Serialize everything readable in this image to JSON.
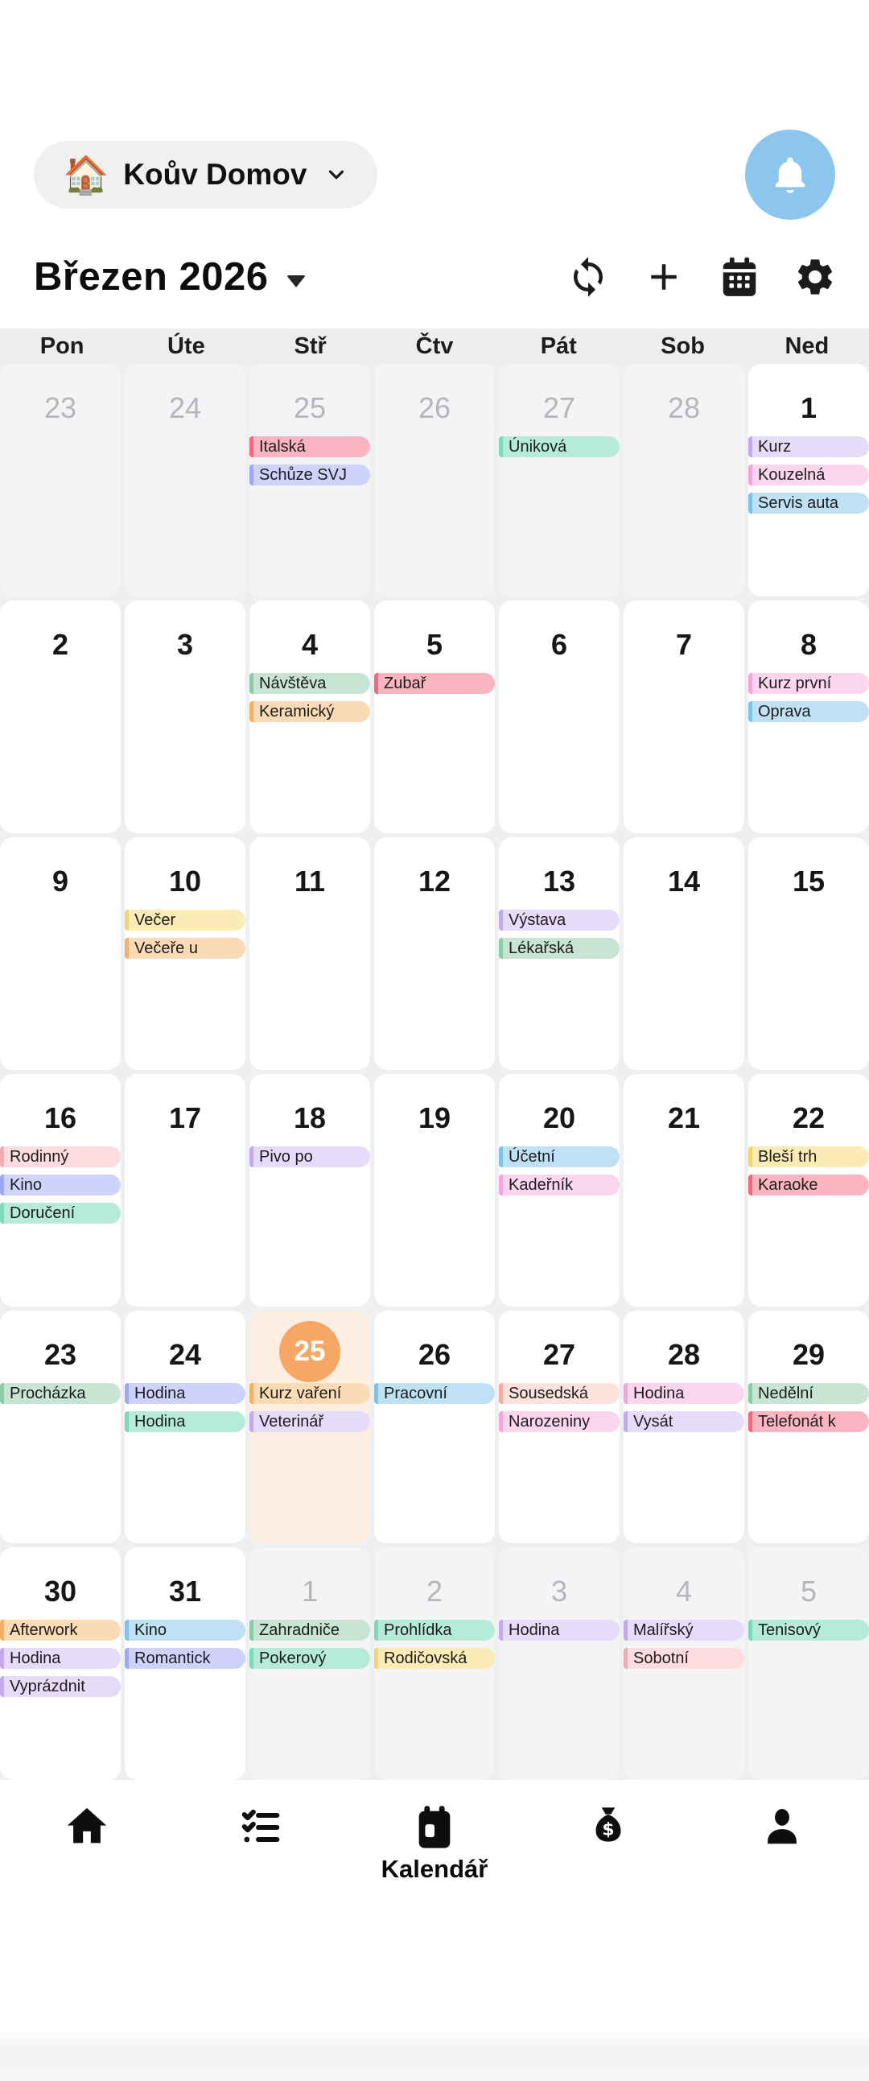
{
  "header": {
    "household_label": "Koův Domov",
    "household_emoji": "🏠"
  },
  "toolbar": {
    "month_title": "Březen 2026",
    "icons": [
      "sync",
      "add",
      "calendar",
      "settings"
    ]
  },
  "weekdays": [
    "Pon",
    "Úte",
    "Stř",
    "Čtv",
    "Pát",
    "Sob",
    "Ned"
  ],
  "colors": {
    "ui": {
      "bell_button": "#8cc5ee",
      "today_circle": "#f6a765",
      "today_cell": "#fcefe1",
      "grid_gap": "#edeff1",
      "outside_cell": "#f4f4f6",
      "weekday_band": "#ededef"
    },
    "events": {
      "salmon": {
        "bg": "#fbb5c1",
        "bar": "#f1697e"
      },
      "rose": {
        "bg": "#fcdcdf",
        "bar": "#f6a9b4"
      },
      "blush": {
        "bg": "#fce3de",
        "bar": "#f3ac9f"
      },
      "periwinkle": {
        "bg": "#cdd3fa",
        "bar": "#9ea8f3"
      },
      "mint": {
        "bg": "#b7ebd9",
        "bar": "#7cdab9"
      },
      "sage": {
        "bg": "#c7e5d2",
        "bar": "#8ccba5"
      },
      "lavender": {
        "bg": "#e6dbf8",
        "bar": "#c3a9ee"
      },
      "pink": {
        "bg": "#fbd6ee",
        "bar": "#f4a5d9"
      },
      "blue": {
        "bg": "#bfe1f4",
        "bar": "#7ec3e8"
      },
      "yellow": {
        "bg": "#fbecb6",
        "bar": "#f3d573"
      },
      "peach": {
        "bg": "#fbdbb5",
        "bar": "#f2b166"
      }
    }
  },
  "calendar": {
    "weeks": [
      [
        {
          "day": 23,
          "outside": true,
          "events": []
        },
        {
          "day": 24,
          "outside": true,
          "events": []
        },
        {
          "day": 25,
          "outside": true,
          "events": [
            {
              "label": "Italská",
              "color": "salmon"
            },
            {
              "label": "Schůze SVJ",
              "color": "periwinkle"
            }
          ]
        },
        {
          "day": 26,
          "outside": true,
          "events": []
        },
        {
          "day": 27,
          "outside": true,
          "events": [
            {
              "label": "Úniková",
              "color": "mint"
            }
          ]
        },
        {
          "day": 28,
          "outside": true,
          "events": []
        },
        {
          "day": 1,
          "outside": false,
          "events": [
            {
              "label": "Kurz",
              "color": "lavender"
            },
            {
              "label": "Kouzelná",
              "color": "pink"
            },
            {
              "label": "Servis auta",
              "color": "blue"
            }
          ]
        }
      ],
      [
        {
          "day": 2,
          "outside": false,
          "events": []
        },
        {
          "day": 3,
          "outside": false,
          "events": []
        },
        {
          "day": 4,
          "outside": false,
          "events": [
            {
              "label": "Návštěva",
              "color": "sage"
            },
            {
              "label": "Keramický",
              "color": "peach"
            }
          ]
        },
        {
          "day": 5,
          "outside": false,
          "events": [
            {
              "label": "Zubař",
              "color": "salmon"
            }
          ]
        },
        {
          "day": 6,
          "outside": false,
          "events": []
        },
        {
          "day": 7,
          "outside": false,
          "events": []
        },
        {
          "day": 8,
          "outside": false,
          "events": [
            {
              "label": "Kurz první",
              "color": "pink"
            },
            {
              "label": "Oprava",
              "color": "blue"
            }
          ]
        }
      ],
      [
        {
          "day": 9,
          "outside": false,
          "events": []
        },
        {
          "day": 10,
          "outside": false,
          "events": [
            {
              "label": "Večer",
              "color": "yellow"
            },
            {
              "label": "Večeře u",
              "color": "peach"
            }
          ]
        },
        {
          "day": 11,
          "outside": false,
          "events": []
        },
        {
          "day": 12,
          "outside": false,
          "events": []
        },
        {
          "day": 13,
          "outside": false,
          "events": [
            {
              "label": "Výstava",
              "color": "lavender"
            },
            {
              "label": "Lékařská",
              "color": "sage"
            }
          ]
        },
        {
          "day": 14,
          "outside": false,
          "events": []
        },
        {
          "day": 15,
          "outside": false,
          "events": []
        }
      ],
      [
        {
          "day": 16,
          "outside": false,
          "events": [
            {
              "label": "Rodinný",
              "color": "rose"
            },
            {
              "label": "Kino",
              "color": "periwinkle"
            },
            {
              "label": "Doručení",
              "color": "mint"
            }
          ]
        },
        {
          "day": 17,
          "outside": false,
          "events": []
        },
        {
          "day": 18,
          "outside": false,
          "events": [
            {
              "label": "Pivo po",
              "color": "lavender"
            }
          ]
        },
        {
          "day": 19,
          "outside": false,
          "events": []
        },
        {
          "day": 20,
          "outside": false,
          "events": [
            {
              "label": "Účetní",
              "color": "blue"
            },
            {
              "label": "Kadeřník",
              "color": "pink"
            }
          ]
        },
        {
          "day": 21,
          "outside": false,
          "events": []
        },
        {
          "day": 22,
          "outside": false,
          "events": [
            {
              "label": "Bleší trh",
              "color": "yellow"
            },
            {
              "label": "Karaoke",
              "color": "salmon"
            }
          ]
        }
      ],
      [
        {
          "day": 23,
          "outside": false,
          "events": [
            {
              "label": "Procházka",
              "color": "sage"
            }
          ]
        },
        {
          "day": 24,
          "outside": false,
          "events": [
            {
              "label": "Hodina",
              "color": "periwinkle"
            },
            {
              "label": "Hodina",
              "color": "mint"
            }
          ]
        },
        {
          "day": 25,
          "outside": false,
          "today": true,
          "events": [
            {
              "label": "Kurz vaření",
              "color": "peach"
            },
            {
              "label": "Veterinář",
              "color": "lavender"
            }
          ]
        },
        {
          "day": 26,
          "outside": false,
          "events": [
            {
              "label": "Pracovní",
              "color": "blue"
            }
          ]
        },
        {
          "day": 27,
          "outside": false,
          "events": [
            {
              "label": "Sousedská",
              "color": "blush"
            },
            {
              "label": "Narozeniny",
              "color": "pink"
            }
          ]
        },
        {
          "day": 28,
          "outside": false,
          "events": [
            {
              "label": "Hodina",
              "color": "pink"
            },
            {
              "label": "Vysát",
              "color": "lavender"
            }
          ]
        },
        {
          "day": 29,
          "outside": false,
          "events": [
            {
              "label": "Nedělní",
              "color": "sage"
            },
            {
              "label": "Telefonát k",
              "color": "salmon"
            }
          ]
        }
      ],
      [
        {
          "day": 30,
          "outside": false,
          "events": [
            {
              "label": "Afterwork",
              "color": "peach"
            },
            {
              "label": "Hodina",
              "color": "lavender"
            },
            {
              "label": "Vyprázdnit",
              "color": "lavender"
            }
          ]
        },
        {
          "day": 31,
          "outside": false,
          "events": [
            {
              "label": "Kino",
              "color": "blue"
            },
            {
              "label": "Romantick",
              "color": "periwinkle"
            }
          ]
        },
        {
          "day": 1,
          "outside": true,
          "events": [
            {
              "label": "Zahradniče",
              "color": "sage"
            },
            {
              "label": "Pokerový",
              "color": "mint"
            }
          ]
        },
        {
          "day": 2,
          "outside": true,
          "events": [
            {
              "label": "Prohlídka",
              "color": "mint"
            },
            {
              "label": "Rodičovská",
              "color": "yellow"
            }
          ]
        },
        {
          "day": 3,
          "outside": true,
          "events": [
            {
              "label": "Hodina",
              "color": "lavender"
            }
          ]
        },
        {
          "day": 4,
          "outside": true,
          "events": [
            {
              "label": "Malířský",
              "color": "lavender"
            },
            {
              "label": "Sobotní",
              "color": "rose"
            }
          ]
        },
        {
          "day": 5,
          "outside": true,
          "events": [
            {
              "label": "Tenisový",
              "color": "mint"
            }
          ]
        }
      ]
    ]
  },
  "bottom_nav": {
    "active": "calendar",
    "active_label": "Kalendář",
    "items": [
      "home",
      "tasks",
      "calendar",
      "budget",
      "profile"
    ]
  }
}
